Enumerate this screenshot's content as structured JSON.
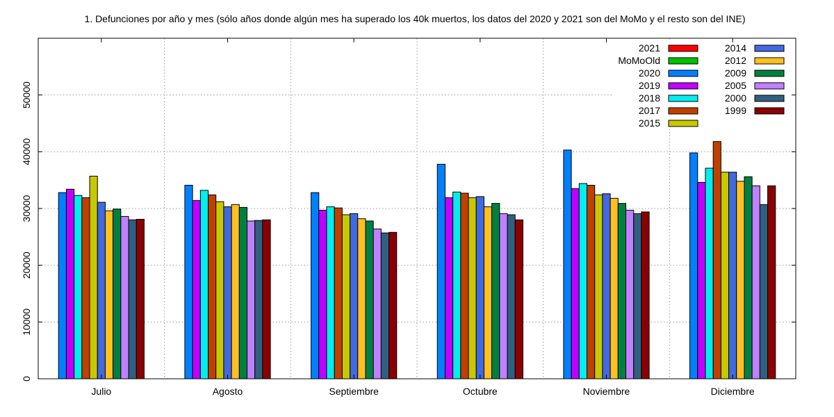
{
  "chart_data": {
    "type": "bar",
    "title": "1. Defunciones por año y mes (sólo años donde algún mes ha superado los 40k muertos, los datos del 2020 y 2021 son del MoMo y el resto son del INE)",
    "categories": [
      "Julio",
      "Agosto",
      "Septiembre",
      "Octubre",
      "Noviembre",
      "Diciembre"
    ],
    "ylim": [
      0,
      60000
    ],
    "yticks": [
      0,
      10000,
      20000,
      30000,
      40000,
      50000
    ],
    "grid": true,
    "legend_position": "top-right",
    "series": [
      {
        "name": "2021",
        "color": "#ff0000",
        "values": [
          null,
          null,
          null,
          null,
          null,
          null
        ]
      },
      {
        "name": "MoMoOld",
        "color": "#00c000",
        "values": [
          null,
          null,
          null,
          null,
          null,
          null
        ]
      },
      {
        "name": "2020",
        "color": "#0080ff",
        "values": [
          32800,
          34100,
          32800,
          37800,
          40300,
          39800
        ]
      },
      {
        "name": "2019",
        "color": "#c000ff",
        "values": [
          33400,
          31400,
          29700,
          31900,
          33500,
          34600
        ]
      },
      {
        "name": "2018",
        "color": "#00eeee",
        "values": [
          32300,
          33200,
          30300,
          32900,
          34400,
          37100
        ]
      },
      {
        "name": "2017",
        "color": "#c04000",
        "values": [
          31900,
          32400,
          30100,
          32700,
          34100,
          41800
        ]
      },
      {
        "name": "2015",
        "color": "#c8c800",
        "values": [
          35700,
          31200,
          28900,
          31900,
          32400,
          36400
        ]
      },
      {
        "name": "2014",
        "color": "#4169e1",
        "values": [
          31100,
          30300,
          29100,
          32100,
          32600,
          36400
        ]
      },
      {
        "name": "2012",
        "color": "#ffc020",
        "values": [
          29600,
          30700,
          28200,
          30300,
          31800,
          34800
        ]
      },
      {
        "name": "2009",
        "color": "#008040",
        "values": [
          29900,
          30200,
          27800,
          30900,
          30900,
          35600
        ]
      },
      {
        "name": "2005",
        "color": "#c080ff",
        "values": [
          28600,
          27800,
          26400,
          29100,
          29700,
          34000
        ]
      },
      {
        "name": "2000",
        "color": "#306080",
        "values": [
          28000,
          27900,
          25700,
          28900,
          29100,
          30700
        ]
      },
      {
        "name": "1999",
        "color": "#8b0000",
        "values": [
          28100,
          28000,
          25800,
          28000,
          29400,
          34000
        ]
      }
    ]
  }
}
